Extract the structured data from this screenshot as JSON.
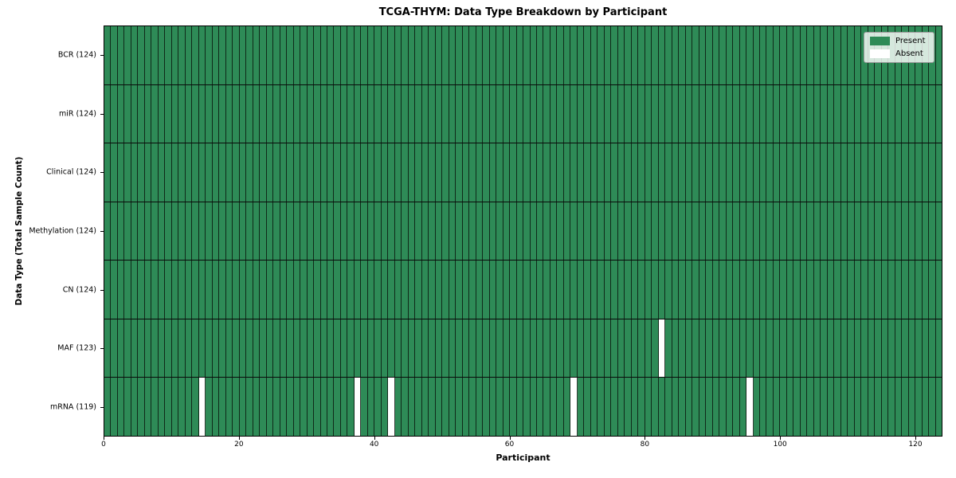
{
  "chart_data": {
    "type": "heatmap",
    "title": "TCGA-THYM: Data Type Breakdown by Participant",
    "xlabel": "Participant",
    "ylabel": "Data Type (Total Sample Count)",
    "n_participants": 124,
    "xlim": [
      0,
      124
    ],
    "x_ticks": [
      0,
      20,
      40,
      60,
      80,
      100,
      120
    ],
    "grid": "cell-borders-on",
    "legend_position": "upper-right",
    "legend": [
      {
        "label": "Present",
        "color": "#2e8b57"
      },
      {
        "label": "Absent",
        "color": "#ffffff"
      }
    ],
    "colors": {
      "present": "#2e8b57",
      "absent": "#ffffff",
      "cell_edge": "#141414",
      "background": "#ffffff"
    },
    "rows": [
      {
        "label": "BCR (124)",
        "data_type": "BCR",
        "present_count": 124,
        "absent_participant_indices": []
      },
      {
        "label": "miR (124)",
        "data_type": "miR",
        "present_count": 124,
        "absent_participant_indices": []
      },
      {
        "label": "Clinical (124)",
        "data_type": "Clinical",
        "present_count": 124,
        "absent_participant_indices": []
      },
      {
        "label": "Methylation (124)",
        "data_type": "Methylation",
        "present_count": 124,
        "absent_participant_indices": []
      },
      {
        "label": "CN (124)",
        "data_type": "CN",
        "present_count": 124,
        "absent_participant_indices": []
      },
      {
        "label": "MAF (123)",
        "data_type": "MAF",
        "present_count": 123,
        "absent_participant_indices": [
          82
        ]
      },
      {
        "label": "mRNA (119)",
        "data_type": "mRNA",
        "present_count": 119,
        "absent_participant_indices": [
          14,
          37,
          42,
          69,
          95
        ]
      }
    ]
  }
}
